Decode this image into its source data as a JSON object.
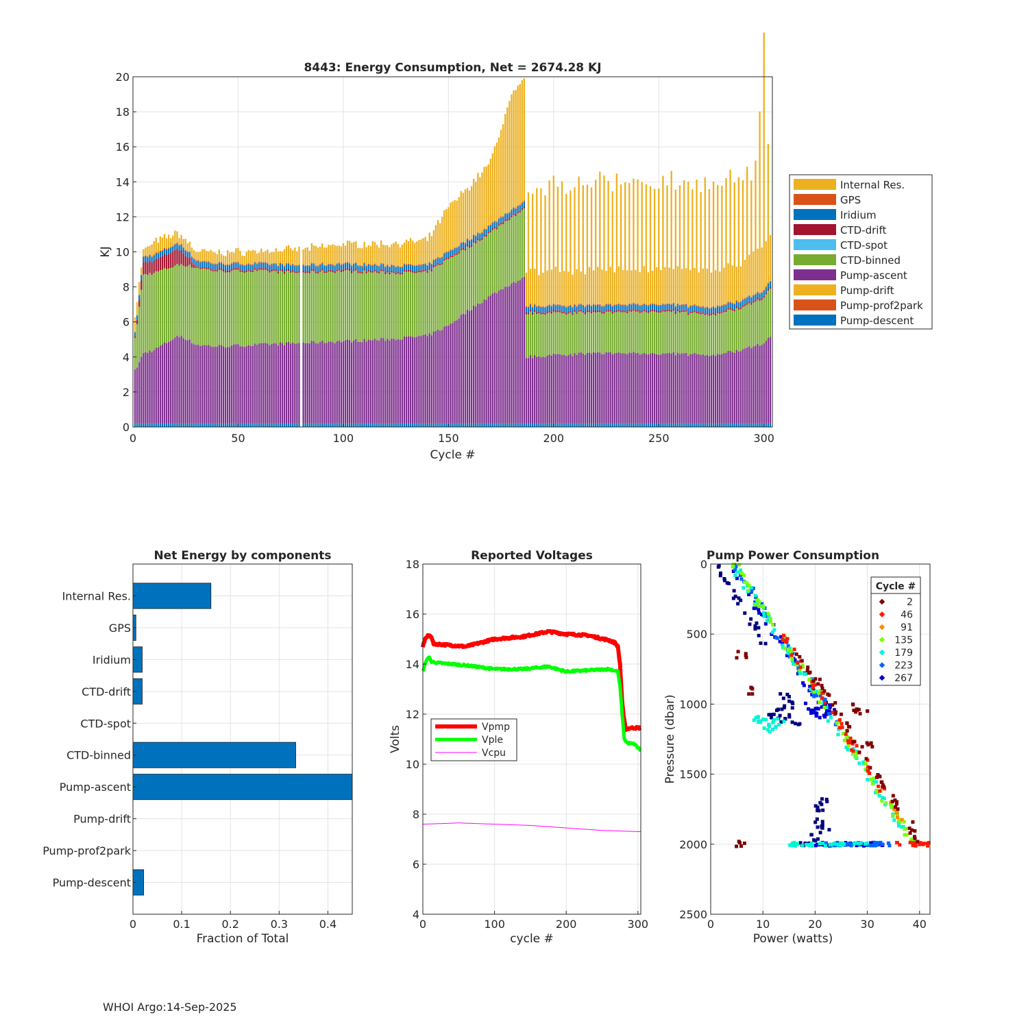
{
  "footer": "WHOI Argo:14-Sep-2025",
  "chart_data": [
    {
      "id": "energy",
      "type": "bar",
      "stacked": true,
      "title": "8443: Energy Consumption,  Net = 2674.28 KJ",
      "xlabel": "Cycle #",
      "ylabel": "KJ",
      "xlim": [
        0,
        304
      ],
      "ylim": [
        0,
        20
      ],
      "xticks": [
        0,
        50,
        100,
        150,
        200,
        250,
        300
      ],
      "yticks": [
        0,
        2,
        4,
        6,
        8,
        10,
        12,
        14,
        16,
        18,
        20
      ],
      "grid": true,
      "legend_position": "right-outside",
      "legend": [
        {
          "name": "Internal Res.",
          "color": "#EDB120"
        },
        {
          "name": "GPS",
          "color": "#D95319"
        },
        {
          "name": "Iridium",
          "color": "#0072BD"
        },
        {
          "name": "CTD-drift",
          "color": "#A2142F"
        },
        {
          "name": "CTD-spot",
          "color": "#4DBEEE"
        },
        {
          "name": "CTD-binned",
          "color": "#77AC30"
        },
        {
          "name": "Pump-ascent",
          "color": "#7E2F8E"
        },
        {
          "name": "Pump-drift",
          "color": "#EDB120"
        },
        {
          "name": "Pump-prof2park",
          "color": "#D95319"
        },
        {
          "name": "Pump-descent",
          "color": "#0072BD"
        }
      ],
      "profile": {
        "cycles": [
          1,
          5,
          10,
          20,
          23,
          30,
          40,
          60,
          80,
          100,
          120,
          140,
          150,
          160,
          170,
          180,
          186,
          187,
          200,
          220,
          250,
          275,
          290,
          300,
          304
        ],
        "pump_descent": [
          0.2,
          0.2,
          0.2,
          0.2,
          0.2,
          0.2,
          0.2,
          0.2,
          0.2,
          0.2,
          0.2,
          0.2,
          0.2,
          0.2,
          0.2,
          0.2,
          0.2,
          0.2,
          0.2,
          0.2,
          0.2,
          0.2,
          0.2,
          0.2,
          0.2
        ],
        "pump_ascent": [
          3.0,
          4.0,
          4.2,
          4.9,
          5.0,
          4.5,
          4.4,
          4.5,
          4.6,
          4.7,
          4.8,
          5.0,
          5.6,
          6.5,
          7.3,
          8.0,
          8.3,
          3.8,
          3.9,
          4.0,
          4.0,
          3.9,
          4.2,
          4.6,
          5.0
        ],
        "ctd_binned": [
          1.8,
          4.5,
          4.4,
          4.1,
          4.1,
          4.4,
          4.3,
          4.2,
          4.0,
          4.0,
          3.8,
          3.6,
          3.8,
          3.6,
          3.6,
          3.8,
          3.9,
          2.5,
          2.4,
          2.3,
          2.4,
          2.3,
          2.4,
          2.6,
          2.8
        ],
        "ctd_drift": [
          0.1,
          0.7,
          0.7,
          0.9,
          0.8,
          0.1,
          0.1,
          0.1,
          0.1,
          0.1,
          0.1,
          0.1,
          0.1,
          0.1,
          0.1,
          0.1,
          0.1,
          0.1,
          0.1,
          0.1,
          0.1,
          0.1,
          0.1,
          0.1,
          0.1
        ],
        "iridium": [
          0.2,
          0.3,
          0.3,
          0.3,
          0.3,
          0.3,
          0.3,
          0.3,
          0.3,
          0.3,
          0.3,
          0.3,
          0.3,
          0.3,
          0.3,
          0.3,
          0.3,
          0.3,
          0.3,
          0.3,
          0.3,
          0.3,
          0.3,
          0.3,
          0.3
        ],
        "gps": [
          0.05,
          0.05,
          0.05,
          0.05,
          0.05,
          0.05,
          0.05,
          0.05,
          0.05,
          0.05,
          0.05,
          0.05,
          0.05,
          0.05,
          0.05,
          0.05,
          0.05,
          0.05,
          0.05,
          0.05,
          0.05,
          0.05,
          0.05,
          0.05,
          0.05
        ],
        "internal_res": [
          1.0,
          0.3,
          0.7,
          0.6,
          0.5,
          0.5,
          0.6,
          0.7,
          0.9,
          1.1,
          1.2,
          1.4,
          2.5,
          3.0,
          3.6,
          6.5,
          6.9,
          1.8,
          2.0,
          2.0,
          2.0,
          2.0,
          2.1,
          2.5,
          2.6
        ],
        "spike_extra_even_cycles_after_186": 4.5
      }
    },
    {
      "id": "components",
      "type": "barh",
      "title": "Net Energy by components",
      "xlabel": "Fraction of Total",
      "xlim": [
        0,
        0.45
      ],
      "xticks": [
        0,
        0.1,
        0.2,
        0.3,
        0.4
      ],
      "xtick_labels": [
        "0",
        "0.1",
        "0.2",
        "0.3",
        "0.4"
      ],
      "categories": [
        "Internal Res.",
        "GPS",
        "Iridium",
        "CTD-drift",
        "CTD-spot",
        "CTD-binned",
        "Pump-ascent",
        "Pump-drift",
        "Pump-prof2park",
        "Pump-descent"
      ],
      "values": [
        0.16,
        0.006,
        0.019,
        0.019,
        0,
        0.334,
        0.45,
        0,
        0,
        0.022
      ],
      "bar_color": "#0072BD",
      "grid": true
    },
    {
      "id": "voltages",
      "type": "line",
      "title": "Reported Voltages",
      "xlabel": "cycle #",
      "ylabel": "Volts",
      "xlim": [
        0,
        304
      ],
      "ylim": [
        4,
        18
      ],
      "xticks": [
        0,
        100,
        200,
        300
      ],
      "yticks": [
        4,
        6,
        8,
        10,
        12,
        14,
        16,
        18
      ],
      "grid": true,
      "legend_position": "middle-left",
      "series": [
        {
          "name": "Vpmp",
          "color": "#FF0000",
          "x": [
            0,
            3,
            8,
            12,
            15,
            20,
            40,
            60,
            100,
            140,
            175,
            200,
            230,
            260,
            268,
            272,
            275,
            278,
            280,
            283,
            290,
            304
          ],
          "y": [
            14.7,
            15.0,
            15.15,
            15.1,
            14.8,
            14.8,
            14.75,
            14.7,
            15.0,
            15.1,
            15.3,
            15.2,
            15.15,
            14.95,
            14.85,
            14.7,
            14.0,
            12.5,
            11.9,
            11.4,
            11.45,
            11.45
          ]
        },
        {
          "name": "Vple",
          "color": "#00FF00",
          "x": [
            0,
            3,
            8,
            12,
            20,
            40,
            60,
            100,
            140,
            175,
            200,
            230,
            260,
            272,
            275,
            278,
            281,
            285,
            295,
            304
          ],
          "y": [
            13.7,
            14.0,
            14.3,
            14.1,
            14.05,
            14.0,
            13.95,
            13.8,
            13.8,
            13.9,
            13.7,
            13.75,
            13.8,
            13.7,
            13.1,
            12.0,
            11.0,
            10.85,
            10.8,
            10.55
          ]
        },
        {
          "name": "Vcpu",
          "color": "#FF00FF",
          "x": [
            0,
            50,
            100,
            150,
            200,
            250,
            304
          ],
          "y": [
            7.6,
            7.65,
            7.6,
            7.55,
            7.45,
            7.35,
            7.3
          ]
        }
      ]
    },
    {
      "id": "pump_power",
      "type": "scatter",
      "title": "Pump Power Consumption",
      "xlabel": "Power (watts)",
      "ylabel": "Pressure (dbar)",
      "xlim": [
        0,
        42
      ],
      "ylim": [
        0,
        2500
      ],
      "y_reversed": true,
      "xticks": [
        0,
        10,
        20,
        30,
        40
      ],
      "yticks": [
        0,
        500,
        1000,
        1500,
        2000,
        2500
      ],
      "grid": true,
      "legend_title": "Cycle #",
      "legend_position": "top-right",
      "legend": [
        {
          "name": "2",
          "color": "#800000"
        },
        {
          "name": "46",
          "color": "#FF1A00"
        },
        {
          "name": "91",
          "color": "#FF8C00"
        },
        {
          "name": "135",
          "color": "#7CFF00"
        },
        {
          "name": "179",
          "color": "#00F5D4"
        },
        {
          "name": "223",
          "color": "#0064FF"
        },
        {
          "name": "267",
          "color": "#0000D0"
        }
      ],
      "groups": [
        {
          "color": "#00007F",
          "mode": "main_line",
          "p0": 0,
          "p1": 600,
          "w_offset": -3.0
        },
        {
          "color": "#00007F",
          "mode": "cluster",
          "points": [
            [
              13,
              1050
            ],
            [
              14,
              1100
            ],
            [
              15,
              1000
            ],
            [
              12,
              1080
            ],
            [
              16,
              1120
            ],
            [
              14,
              950
            ]
          ]
        },
        {
          "color": "#00007F",
          "mode": "cluster",
          "points": [
            [
              21,
              1850
            ],
            [
              22,
              1900
            ],
            [
              21,
              1750
            ],
            [
              22,
              1700
            ],
            [
              20,
              1950
            ]
          ]
        },
        {
          "color": "#00007F",
          "mode": "bottom",
          "w0": 17,
          "w1": 23
        },
        {
          "color": "#0000D0",
          "mode": "main_line",
          "p0": 0,
          "p1": 1100,
          "w_offset": 0
        },
        {
          "color": "#0000D0",
          "mode": "cluster",
          "points": [
            [
              20,
              1050
            ],
            [
              22,
              1000
            ],
            [
              23,
              1030
            ],
            [
              21,
              1080
            ],
            [
              19,
              1020
            ]
          ]
        },
        {
          "color": "#0000D0",
          "mode": "bottom",
          "w0": 20,
          "w1": 33
        },
        {
          "color": "#0064FF",
          "mode": "main_line",
          "p0": 0,
          "p1": 1200,
          "w_offset": 0.6
        },
        {
          "color": "#0064FF",
          "mode": "bottom",
          "w0": 22,
          "w1": 35
        },
        {
          "color": "#00F5D4",
          "mode": "main_line",
          "p0": 0,
          "p1": 1900,
          "w_offset": 0.3
        },
        {
          "color": "#00F5D4",
          "mode": "cluster",
          "points": [
            [
              10,
              1120
            ],
            [
              11,
              1150
            ],
            [
              12,
              1180
            ],
            [
              13,
              1130
            ],
            [
              9,
              1110
            ]
          ]
        },
        {
          "color": "#00F5D4",
          "mode": "bottom",
          "w0": 15,
          "w1": 30
        },
        {
          "color": "#7CFF00",
          "mode": "main_line",
          "p0": 0,
          "p1": 2000,
          "w_offset": 0.8
        },
        {
          "color": "#FF8C00",
          "mode": "main_line",
          "p0": 1700,
          "p1": 1850,
          "w_offset": 1.5
        },
        {
          "color": "#FF1A00",
          "mode": "main_line",
          "p0": 500,
          "p1": 1650,
          "w_offset": 1.2
        },
        {
          "color": "#FF1A00",
          "mode": "bottom",
          "w0": 35,
          "w1": 42
        },
        {
          "color": "#800000",
          "mode": "main_line",
          "p0": 600,
          "p1": 1980,
          "w_offset": 2.2
        },
        {
          "color": "#800000",
          "mode": "cluster",
          "points": [
            [
              6,
              650
            ],
            [
              7,
              900
            ],
            [
              6,
              2000
            ],
            [
              29,
              1050
            ],
            [
              27,
              1030
            ],
            [
              31,
              1300
            ]
          ]
        }
      ]
    }
  ]
}
